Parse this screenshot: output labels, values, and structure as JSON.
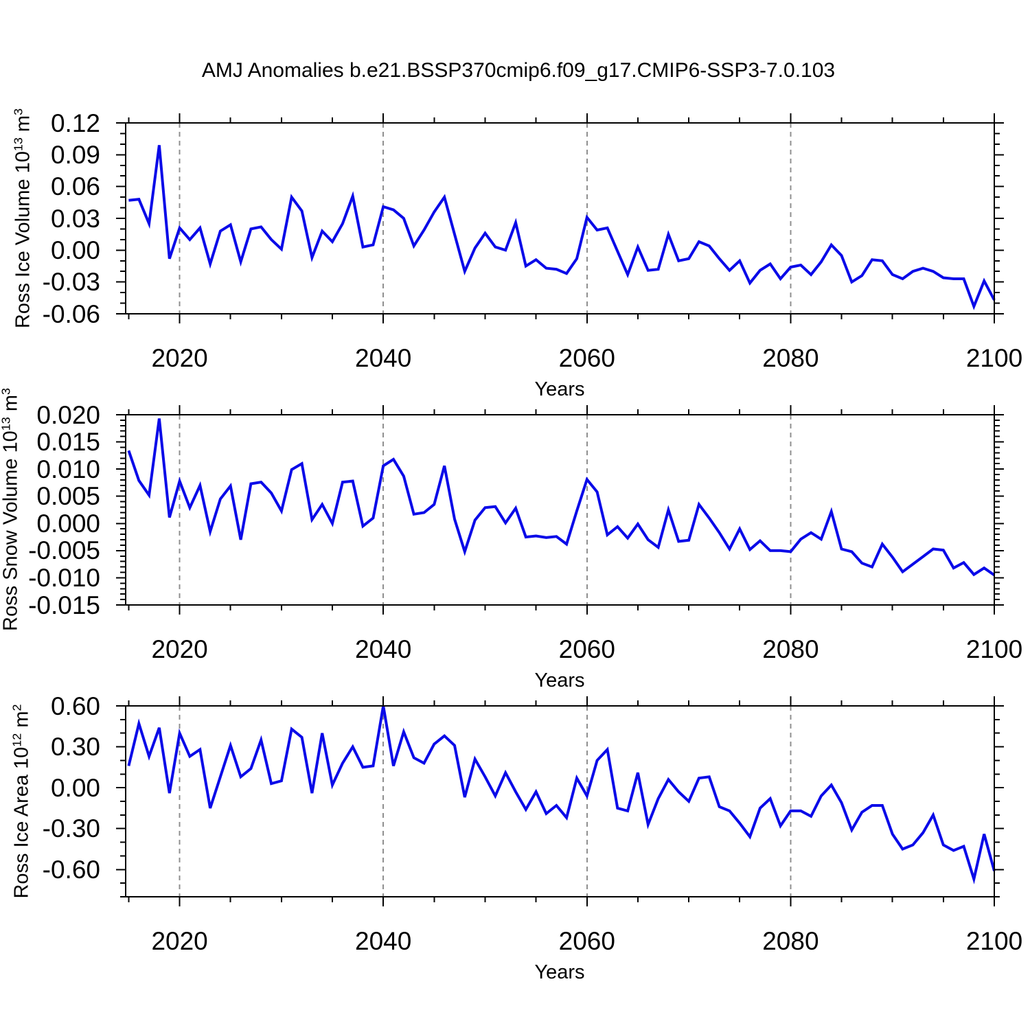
{
  "title": "AMJ Anomalies b.e21.BSSP370cmip6.f09_g17.CMIP6-SSP3-7.0.103",
  "figure": {
    "background": "#ffffff",
    "line_color": "#0a0ae8",
    "grid_color": "#8f8f8f",
    "axis_color": "#000000"
  },
  "chart_data": [
    {
      "type": "line",
      "name": "ross-ice-volume",
      "ylabel_base": "Ross Ice Volume 10",
      "ylabel_exp": "13",
      "ylabel_unit": " m",
      "ylabel_unit_exp": "3",
      "xlabel": "Years",
      "xlim": [
        2014.7,
        2100
      ],
      "ylim": [
        -0.06,
        0.12
      ],
      "x_major_ticks": [
        2020,
        2040,
        2060,
        2080,
        2100
      ],
      "x_tick_labels": [
        "2020",
        "2040",
        "2060",
        "2080",
        "2100"
      ],
      "x_minor_step": 5,
      "x_gridlines": [
        2020,
        2040,
        2060,
        2080
      ],
      "y_major_ticks": [
        0.12,
        0.09,
        0.06,
        0.03,
        0.0,
        -0.03,
        -0.06
      ],
      "y_tick_labels": [
        "0.12",
        "0.09",
        "0.06",
        "0.03",
        "0.00",
        "-0.03",
        "-0.06"
      ],
      "y_minor_step": 0.01,
      "x_start": 2015,
      "x_step": 1,
      "x_end": 2100,
      "values": [
        0.047,
        0.048,
        0.025,
        0.099,
        -0.008,
        0.021,
        0.01,
        0.021,
        -0.013,
        0.018,
        0.024,
        -0.011,
        0.02,
        0.022,
        0.01,
        0.001,
        0.05,
        0.037,
        -0.007,
        0.018,
        0.008,
        0.025,
        0.051,
        0.003,
        0.005,
        0.041,
        0.038,
        0.03,
        0.004,
        0.019,
        0.036,
        0.05,
        0.015,
        -0.02,
        0.002,
        0.016,
        0.003,
        0.0,
        0.026,
        -0.015,
        -0.009,
        -0.017,
        -0.018,
        -0.022,
        -0.008,
        0.031,
        0.019,
        0.021,
        -0.001,
        -0.023,
        0.003,
        -0.019,
        -0.018,
        0.015,
        -0.01,
        -0.008,
        0.008,
        0.004,
        -0.008,
        -0.019,
        -0.01,
        -0.031,
        -0.019,
        -0.013,
        -0.027,
        -0.016,
        -0.014,
        -0.023,
        -0.011,
        0.005,
        -0.005,
        -0.03,
        -0.024,
        -0.009,
        -0.01,
        -0.023,
        -0.027,
        -0.02,
        -0.017,
        -0.02,
        -0.026,
        -0.027,
        -0.027,
        -0.053,
        -0.029,
        -0.047
      ]
    },
    {
      "type": "line",
      "name": "ross-snow-volume",
      "ylabel_base": "Ross Snow Volume 10",
      "ylabel_exp": "13",
      "ylabel_unit": " m",
      "ylabel_unit_exp": "3",
      "xlabel": "Years",
      "xlim": [
        2014.7,
        2100
      ],
      "ylim": [
        -0.015,
        0.02
      ],
      "x_major_ticks": [
        2020,
        2040,
        2060,
        2080,
        2100
      ],
      "x_tick_labels": [
        "2020",
        "2040",
        "2060",
        "2080",
        "2100"
      ],
      "x_minor_step": 5,
      "x_gridlines": [
        2020,
        2040,
        2060,
        2080
      ],
      "y_major_ticks": [
        0.02,
        0.015,
        0.01,
        0.005,
        0.0,
        -0.005,
        -0.01,
        -0.015
      ],
      "y_tick_labels": [
        "0.020",
        "0.015",
        "0.010",
        "0.005",
        "0.000",
        "-0.005",
        "-0.010",
        "-0.015"
      ],
      "y_minor_step": 0.001,
      "x_start": 2015,
      "x_step": 1,
      "x_end": 2100,
      "values": [
        0.0134,
        0.0079,
        0.0052,
        0.0193,
        0.0011,
        0.0078,
        0.0029,
        0.007,
        -0.0015,
        0.0045,
        0.0069,
        -0.003,
        0.0073,
        0.0076,
        0.0056,
        0.0023,
        0.0099,
        0.011,
        0.0007,
        0.0035,
        0.0,
        0.0076,
        0.0078,
        -0.0005,
        0.001,
        0.0106,
        0.0118,
        0.0087,
        0.0017,
        0.002,
        0.0035,
        0.0106,
        0.0008,
        -0.0052,
        0.0006,
        0.0029,
        0.0031,
        0.0001,
        0.0028,
        -0.0025,
        -0.0023,
        -0.0026,
        -0.0024,
        -0.0038,
        0.0023,
        0.0081,
        0.0058,
        -0.0021,
        -0.0006,
        -0.0027,
        -0.0001,
        -0.003,
        -0.0044,
        0.0025,
        -0.0033,
        -0.0031,
        0.0035,
        0.001,
        -0.0017,
        -0.0047,
        -0.001,
        -0.0048,
        -0.0032,
        -0.005,
        -0.005,
        -0.0052,
        -0.0029,
        -0.0017,
        -0.0029,
        0.0022,
        -0.0047,
        -0.0052,
        -0.0073,
        -0.008,
        -0.0038,
        -0.0062,
        -0.0089,
        -0.0075,
        -0.0061,
        -0.0047,
        -0.0049,
        -0.0082,
        -0.0072,
        -0.0094,
        -0.0082,
        -0.0095
      ]
    },
    {
      "type": "line",
      "name": "ross-ice-area",
      "ylabel_base": "Ross Ice Area 10",
      "ylabel_exp": "12",
      "ylabel_unit": " m",
      "ylabel_unit_exp": "2",
      "xlabel": "Years",
      "xlim": [
        2014.7,
        2100
      ],
      "ylim": [
        -0.8,
        0.6
      ],
      "x_major_ticks": [
        2020,
        2040,
        2060,
        2080,
        2100
      ],
      "x_tick_labels": [
        "2020",
        "2040",
        "2060",
        "2080",
        "2100"
      ],
      "x_minor_step": 5,
      "x_gridlines": [
        2020,
        2040,
        2060,
        2080
      ],
      "y_major_ticks": [
        0.6,
        0.3,
        0.0,
        -0.3,
        -0.6
      ],
      "y_tick_labels": [
        "0.60",
        "0.30",
        "0.00",
        "-0.30",
        "-0.60"
      ],
      "y_minor_step": 0.1,
      "x_start": 2015,
      "x_step": 1,
      "x_end": 2100,
      "values": [
        0.16,
        0.47,
        0.23,
        0.44,
        -0.04,
        0.4,
        0.23,
        0.28,
        -0.15,
        0.08,
        0.31,
        0.08,
        0.14,
        0.35,
        0.03,
        0.05,
        0.43,
        0.37,
        -0.04,
        0.4,
        0.02,
        0.18,
        0.3,
        0.15,
        0.16,
        0.6,
        0.16,
        0.41,
        0.22,
        0.18,
        0.32,
        0.38,
        0.31,
        -0.07,
        0.21,
        0.08,
        -0.06,
        0.11,
        -0.03,
        -0.16,
        -0.03,
        -0.19,
        -0.13,
        -0.22,
        0.07,
        -0.06,
        0.2,
        0.28,
        -0.15,
        -0.17,
        0.11,
        -0.27,
        -0.08,
        0.06,
        -0.03,
        -0.1,
        0.07,
        0.08,
        -0.14,
        -0.17,
        -0.26,
        -0.36,
        -0.15,
        -0.08,
        -0.28,
        -0.17,
        -0.17,
        -0.21,
        -0.06,
        0.02,
        -0.11,
        -0.31,
        -0.18,
        -0.13,
        -0.13,
        -0.34,
        -0.45,
        -0.42,
        -0.33,
        -0.2,
        -0.42,
        -0.46,
        -0.43,
        -0.67,
        -0.34,
        -0.61
      ]
    }
  ]
}
